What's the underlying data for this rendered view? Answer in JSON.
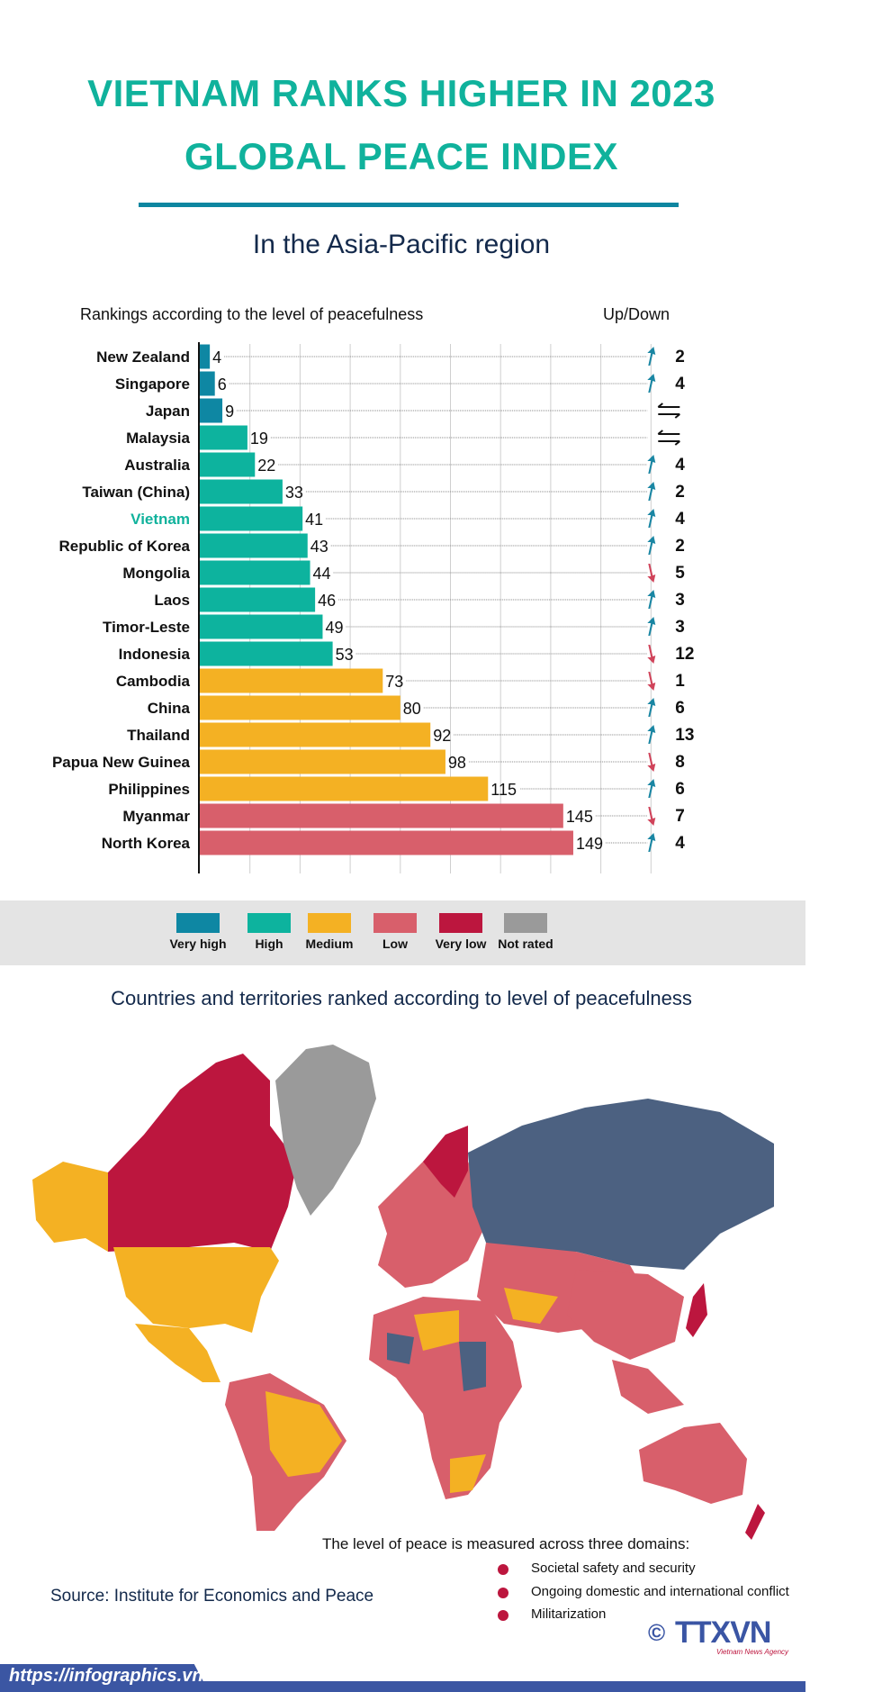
{
  "title_line1": "VIETNAM RANKS HIGHER IN 2023",
  "title_line2": "GLOBAL PEACE INDEX",
  "subtitle": "In the Asia-Pacific region",
  "chart_data": {
    "type": "bar",
    "orientation": "horizontal",
    "title": "Rankings according to the level of peacefulness",
    "change_header": "Up/Down",
    "xlim": [
      0,
      180
    ],
    "grid": true,
    "highlight": "Vietnam",
    "categories": [
      "New Zealand",
      "Singapore",
      "Japan",
      "Malaysia",
      "Australia",
      "Taiwan (China)",
      "Vietnam",
      "Republic of Korea",
      "Mongolia",
      "Laos",
      "Timor-Leste",
      "Indonesia",
      "Cambodia",
      "China",
      "Thailand",
      "Papua New Guinea",
      "Philippines",
      "Myanmar",
      "North Korea"
    ],
    "values": [
      4,
      6,
      9,
      19,
      22,
      33,
      41,
      43,
      44,
      46,
      49,
      53,
      73,
      80,
      92,
      98,
      115,
      145,
      149
    ],
    "levels": [
      "Very high",
      "Very high",
      "Very high",
      "High",
      "High",
      "High",
      "High",
      "High",
      "High",
      "High",
      "High",
      "High",
      "Medium",
      "Medium",
      "Medium",
      "Medium",
      "Medium",
      "Low",
      "Low"
    ],
    "change_direction": [
      "up",
      "up",
      "same",
      "same",
      "up",
      "up",
      "up",
      "up",
      "down",
      "up",
      "up",
      "down",
      "down",
      "up",
      "up",
      "down",
      "up",
      "down",
      "up"
    ],
    "change": [
      2,
      4,
      null,
      null,
      4,
      2,
      4,
      2,
      5,
      3,
      3,
      12,
      1,
      6,
      13,
      8,
      6,
      7,
      4
    ]
  },
  "legend": [
    {
      "label": "Very high",
      "color": "#0e87a3"
    },
    {
      "label": "High",
      "color": "#0db39e"
    },
    {
      "label": "Medium",
      "color": "#f4b123"
    },
    {
      "label": "Low",
      "color": "#d85f6b"
    },
    {
      "label": "Very low",
      "color": "#bc163e"
    },
    {
      "label": "Not rated",
      "color": "#9a9a9a"
    }
  ],
  "colors": {
    "up": "#1a86a3",
    "down": "#d0435a",
    "highlight": "#10b29c",
    "russia": "#4c6181"
  },
  "map_title": "Countries and territories ranked according to level of peacefulness",
  "domains_title": "The level of peace is measured across three domains:",
  "domains": [
    "Societal safety and security",
    "Ongoing domestic and international conflict",
    "Militarization"
  ],
  "source": "Source: Institute for Economics and Peace",
  "logo": {
    "text": "TTXVN",
    "sub": "Vietnam News Agency",
    "copyright": "©"
  },
  "url": "https://infographics.vn"
}
